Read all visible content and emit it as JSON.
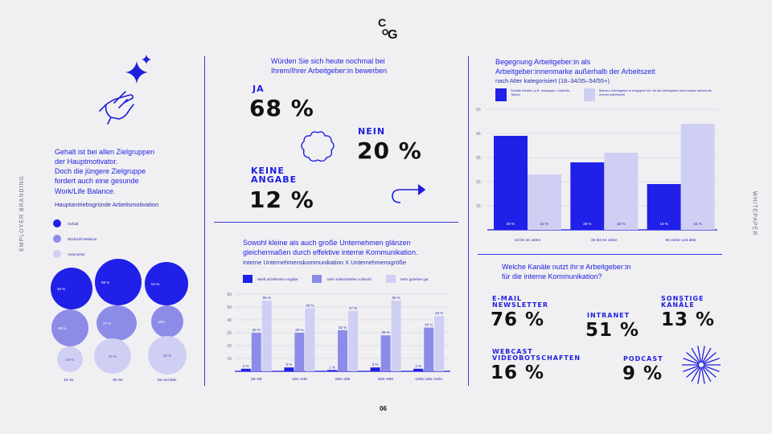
{
  "logo": {
    "text": "CoG"
  },
  "side": {
    "left": "EMPLOYER BRANDING",
    "right": "WHITEPAPER"
  },
  "page_number": "06",
  "motivation": {
    "title_lines": [
      "Gehalt ist bei allen Zielgruppen",
      "der Hauptmotivator.",
      "Doch die jüngere Zielgruppe",
      "fordert auch eine gesunde",
      "Work/Life Balance."
    ],
    "subtitle": "Hauptantriebsgründe Arbeitsmotivation",
    "legend": [
      "Gehalt",
      "Work/Life Balance",
      "Autonomie"
    ],
    "groups": [
      {
        "label": "18–34",
        "gehalt": "49 %",
        "work": "35 %",
        "autonomie": "19 %"
      },
      {
        "label": "35–55",
        "gehalt": "59 %",
        "work": "37 %",
        "autonomie": "23 %"
      },
      {
        "label": "55 und älter",
        "gehalt": "54 %",
        "work": "18%",
        "autonomie": "33 %"
      }
    ]
  },
  "rehire": {
    "title_lines": [
      "Würden Sie sich heute nochmal bei",
      "Ihrem/Ihrer Arbeitgeber:in bewerben"
    ],
    "ja_label": "JA",
    "ja_value": "68 %",
    "nein_label": "NEIN",
    "nein_value": "20 %",
    "keine_label_1": "KEINE",
    "keine_label_2": "ANGABE",
    "keine_value": "12 %"
  },
  "internal_comm": {
    "title_lines": [
      "Sowohl kleine als auch große Unternehmen glänzen",
      "gleichermaßen durch effektive interne Kommunikation."
    ],
    "subtitle": "Interne Unternehmenskommunikation X Unternehmensgröße",
    "legend": [
      "Weiß nicht/Keine Angabe",
      "Sehr schlecht/eher schlecht",
      "Sehr gut/eher gut"
    ]
  },
  "encounter": {
    "title_lines": [
      "Begegnung Arbeitgeber:in als",
      "Arbeitgeber:innenmarke außerhalb der Arbeitszeit"
    ],
    "subtitle": "nach Alter kategorisiert (18–34/35–54/55+)",
    "legend": [
      "Soziale Medien (z.B. Instagram, LinkedIn, Tiktok)",
      "Meine:n Arbeitgeber:in begegnet mir nie als Arbeitgeber:innenmarke außerhalb meiner Arbeitszeit"
    ]
  },
  "channels": {
    "title_lines": [
      "Welche Kanäle nutzt ihr:e Arbeitgeber:in",
      "für die interne Kommunikation?"
    ],
    "email_1": "E-MAIL",
    "email_2": "NEWSLETTER",
    "email_value": "76 %",
    "intranet": "INTRANET",
    "intranet_value": "51 %",
    "sonstige_1": "SONSTIGE",
    "sonstige_2": "KANÄLE",
    "sonstige_value": "13 %",
    "webcast_1": "WEBCAST",
    "webcast_2": "VIDEOBOTSCHAFTEN",
    "webcast_value": "16 %",
    "podcast": "PODCAST",
    "podcast_value": "9 %"
  },
  "chart_data": [
    {
      "type": "bar",
      "title": "Interne Unternehmenskommunikation X Unternehmensgröße",
      "categories": [
        "50–99",
        "100–249",
        "250–499",
        "500–999",
        "1000 oder mehr"
      ],
      "series": [
        {
          "name": "Weiß nicht/Keine Angabe",
          "values": [
            2,
            3,
            1,
            3,
            2
          ],
          "labels": [
            "2 %",
            "3 %",
            "1 %",
            "3 %",
            "2 %"
          ],
          "color": "#2020e8"
        },
        {
          "name": "Sehr schlecht/eher schlecht",
          "values": [
            30,
            30,
            32,
            28,
            34
          ],
          "labels": [
            "30 %",
            "30 %",
            "32 %",
            "28 %",
            "34 %"
          ],
          "color": "#8c8ce8"
        },
        {
          "name": "Sehr gut/eher gut",
          "values": [
            55,
            49,
            47,
            55,
            43
          ],
          "labels": [
            "55 %",
            "49 %",
            "47 %",
            "55 %",
            "43 %"
          ],
          "color": "#cfcff4"
        }
      ],
      "yticks": [
        10,
        20,
        30,
        40,
        50,
        60
      ],
      "ylim": [
        0,
        60
      ]
    },
    {
      "type": "bar",
      "title": "Begegnung Arbeitgeber:in als Arbeitgeber:innenmarke außerhalb der Arbeitszeit",
      "categories": [
        "18 bis 34 Jahre",
        "35 bis 54 Jahre",
        "55 Jahre und älter"
      ],
      "series": [
        {
          "name": "Soziale Medien",
          "values": [
            39,
            28,
            19
          ],
          "labels": [
            "39 %",
            "28 %",
            "19 %"
          ],
          "color": "#2020e8"
        },
        {
          "name": "Nie außerhalb der Arbeitszeit",
          "values": [
            23,
            32,
            44
          ],
          "labels": [
            "23 %",
            "32 %",
            "44 %"
          ],
          "color": "#cfcff4"
        }
      ],
      "yticks": [
        10,
        20,
        30,
        40,
        50
      ],
      "ylim": [
        0,
        50
      ]
    }
  ]
}
